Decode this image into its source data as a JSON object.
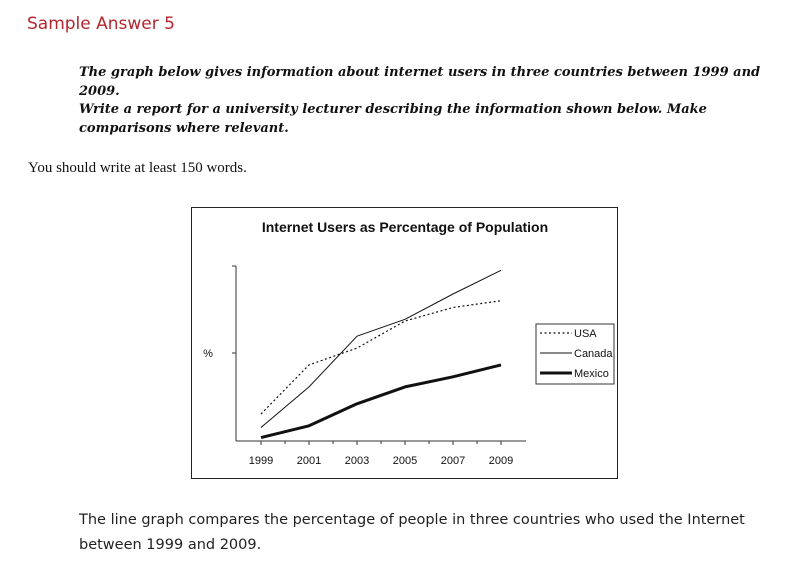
{
  "page": {
    "heading": "Sample Answer 5",
    "task_line1": "The graph below gives information about internet users in three countries between 1999 and 2009.",
    "task_line2": "Write a report for a university lecturer describing the information shown below. Make comparisons where relevant.",
    "instruction": "You should write at least 150 words.",
    "answer": "The line graph compares the percentage of people in three countries who used the Internet between 1999 and 2009."
  },
  "chart_data": {
    "type": "line",
    "title": "Internet Users as Percentage of Population",
    "ylabel": "%",
    "x": [
      1999,
      2001,
      2003,
      2005,
      2007,
      2009
    ],
    "x_tick_labels": [
      "1999",
      "2001",
      "2003",
      "2005",
      "2007",
      "2009"
    ],
    "y_tick_labels": [],
    "ylim": [
      0,
      100
    ],
    "legend_position": "right",
    "series": [
      {
        "name": "USA",
        "style": "dotted",
        "values": [
          16,
          45,
          55,
          71,
          79,
          83
        ]
      },
      {
        "name": "Canada",
        "style": "thin-solid",
        "values": [
          8,
          32,
          62,
          72,
          87,
          101
        ]
      },
      {
        "name": "Mexico",
        "style": "thick-solid",
        "values": [
          2,
          9,
          22,
          32,
          38,
          45
        ]
      }
    ],
    "colors": {
      "line": "#111111",
      "axis": "#333333"
    }
  }
}
